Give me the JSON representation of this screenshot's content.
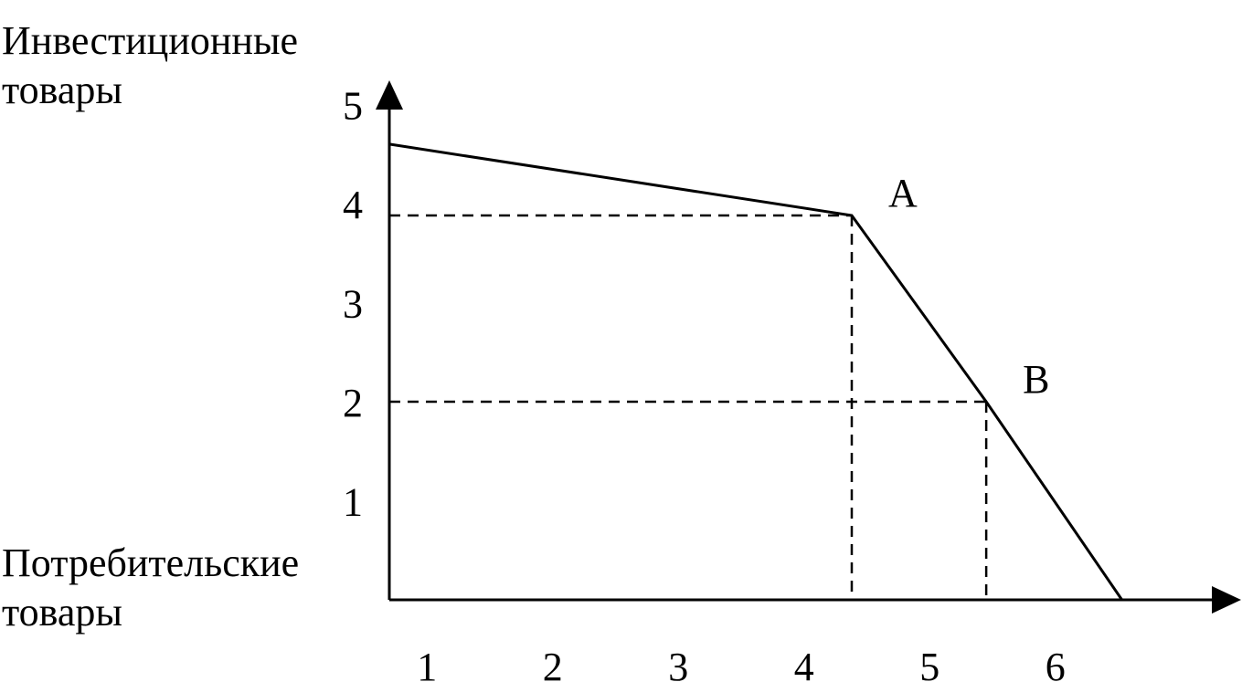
{
  "chart_data": {
    "type": "line",
    "ylabel_lines": [
      "Инвестиционные",
      "товары"
    ],
    "xlabel_lines": [
      "Потребительские",
      "товары"
    ],
    "x_ticks": [
      "1",
      "2",
      "3",
      "4",
      "5",
      "6"
    ],
    "y_ticks": [
      "1",
      "2",
      "3",
      "4",
      "5"
    ],
    "xlim": [
      0.7,
      6.6
    ],
    "ylim": [
      0,
      5.2
    ],
    "series": [
      {
        "points": [
          [
            0.7,
            4.6
          ],
          [
            4.38,
            3.88
          ],
          [
            5.45,
            2.0
          ],
          [
            6.53,
            0.0
          ]
        ]
      }
    ],
    "points": [
      {
        "label": "A",
        "x": 4.38,
        "y": 3.88
      },
      {
        "label": "B",
        "x": 5.45,
        "y": 2.0
      }
    ],
    "dashed_guides": true,
    "colors": {
      "line": "#000000",
      "background": "#ffffff"
    }
  }
}
